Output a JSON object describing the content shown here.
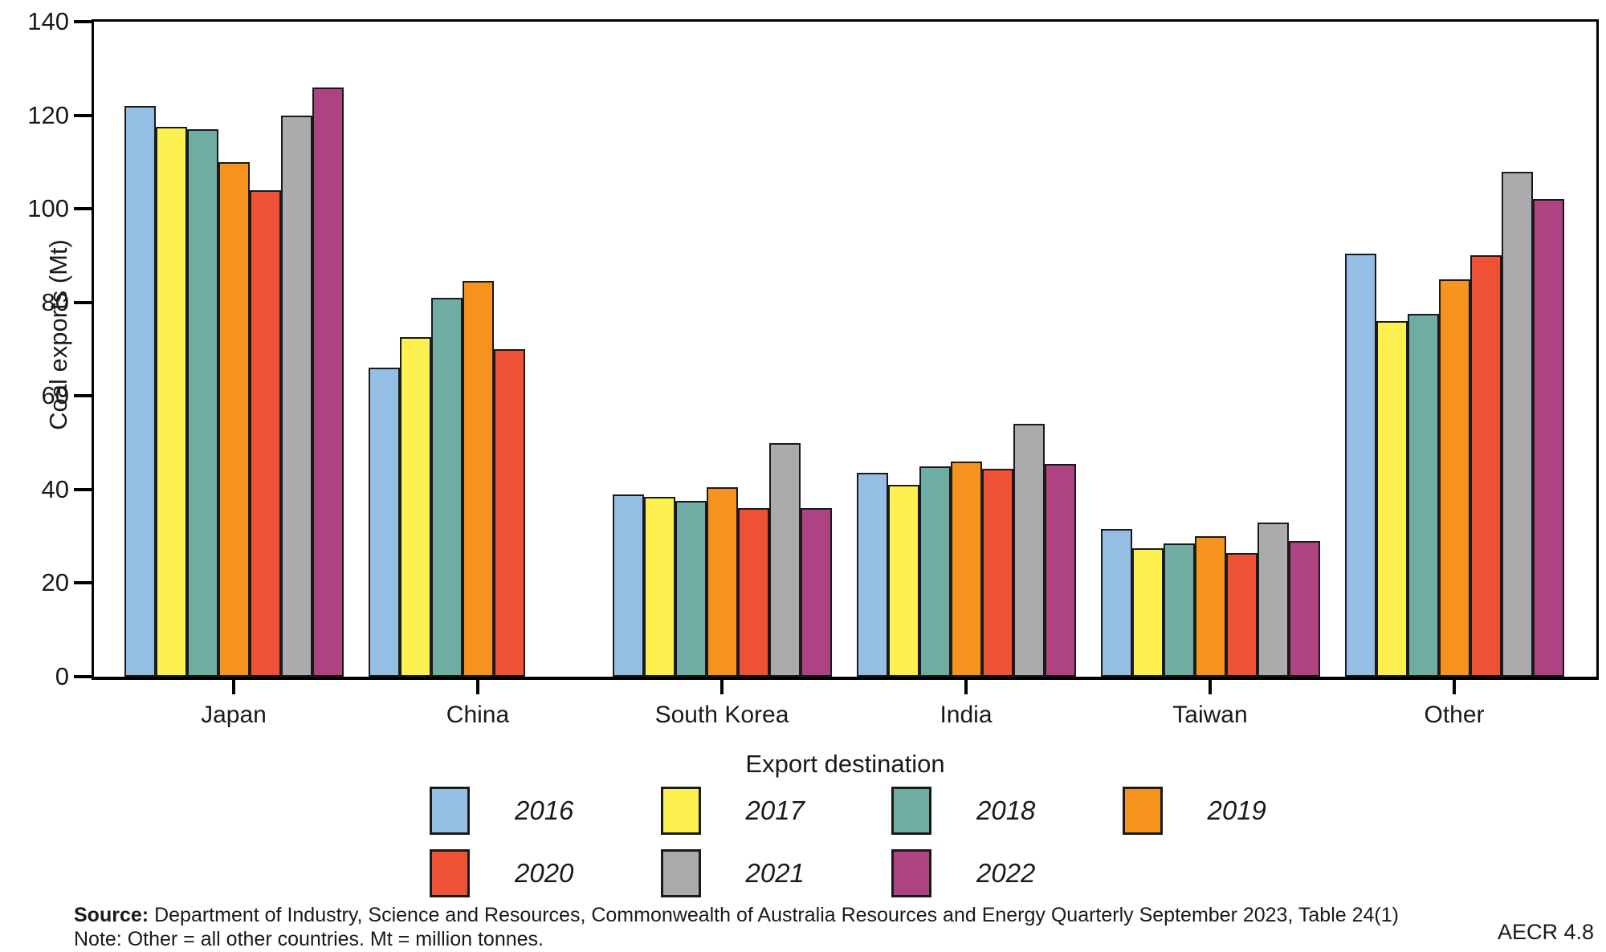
{
  "chart_data": {
    "type": "bar",
    "title": "",
    "ylabel": "Coal exports (Mt)",
    "xlabel": "Export destination",
    "ylim": [
      0,
      140
    ],
    "ytick_step": 20,
    "grid": false,
    "legend_position": "bottom",
    "bar_border_color": "#1A1A1A",
    "categories": [
      "Japan",
      "China",
      "South Korea",
      "India",
      "Taiwan",
      "Other"
    ],
    "series": [
      {
        "name": "2016",
        "color": "#94BEE4",
        "values": [
          122,
          66,
          39,
          43.5,
          31.5,
          90.5
        ]
      },
      {
        "name": "2017",
        "color": "#FCF151",
        "values": [
          117.5,
          72.5,
          38.5,
          41,
          27.5,
          76
        ]
      },
      {
        "name": "2018",
        "color": "#6FADA3",
        "values": [
          117,
          81,
          37.5,
          45,
          28.5,
          77.5
        ]
      },
      {
        "name": "2019",
        "color": "#F6921E",
        "values": [
          110,
          84.5,
          40.5,
          46,
          30,
          85
        ]
      },
      {
        "name": "2020",
        "color": "#EF5135",
        "values": [
          104,
          70,
          36,
          44.5,
          26.5,
          90
        ]
      },
      {
        "name": "2021",
        "color": "#ABABAE",
        "values": [
          120,
          0,
          50,
          54,
          33,
          108
        ]
      },
      {
        "name": "2022",
        "color": "#AD4381",
        "values": [
          126,
          0,
          36,
          45.5,
          29,
          102
        ]
      }
    ],
    "zero_values_hidden": true
  },
  "footer": {
    "source_label": "Source:",
    "source_text": "Department of Industry, Science and Resources, Commonwealth of Australia Resources and Energy Quarterly September 2023, Table 24(1)",
    "note_text": "Note: Other = all other countries. Mt = million tonnes.",
    "figure_code": "AECR 4.8"
  }
}
